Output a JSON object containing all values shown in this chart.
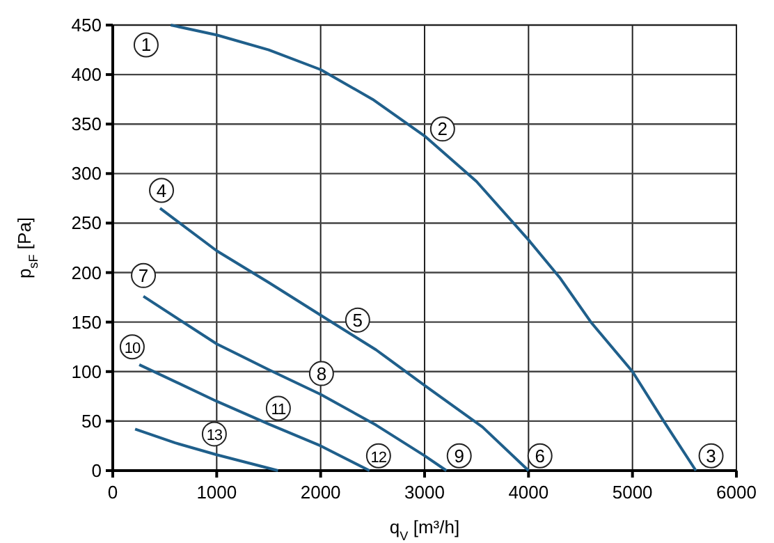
{
  "chart_data": {
    "type": "line",
    "xlabel": "q$_{V}$ [m³/h]",
    "ylabel": "p$_{sF}$ [Pa]",
    "xlim": [
      0,
      6000
    ],
    "xticks": [
      0,
      1000,
      2000,
      3000,
      4000,
      5000,
      6000
    ],
    "ylim": [
      0,
      450
    ],
    "yticks": [
      0,
      50,
      100,
      150,
      200,
      250,
      300,
      350,
      400,
      450
    ],
    "grid": true,
    "marker": "none",
    "line_style": "solid",
    "series": [
      {
        "color": "#1f5f8b",
        "x": [
          558,
          1000,
          1500,
          2000,
          2500,
          3000,
          3500,
          4000,
          4300,
          4600,
          5000,
          5300,
          5610
        ],
        "values": [
          450,
          440,
          425,
          405,
          375,
          338,
          292,
          233,
          195,
          150,
          100,
          50,
          0
        ]
      },
      {
        "color": "#1f5f8b",
        "x": [
          455,
          1000,
          1500,
          2000,
          2533,
          3000,
          3557,
          4000
        ],
        "values": [
          265,
          222,
          190,
          157,
          122,
          86,
          44,
          0
        ]
      },
      {
        "color": "#1f5f8b",
        "x": [
          295,
          1000,
          1500,
          2000,
          2533,
          3000,
          3210
        ],
        "values": [
          176,
          128,
          102,
          77,
          46,
          15,
          0
        ]
      },
      {
        "color": "#1f5f8b",
        "x": [
          255,
          1000,
          1500,
          2000,
          2470
        ],
        "values": [
          107,
          70,
          47,
          25,
          0
        ]
      },
      {
        "color": "#1f5f8b",
        "x": [
          215,
          600,
          1000,
          1590
        ],
        "values": [
          42,
          28,
          16,
          0
        ]
      }
    ],
    "annotations": [
      {
        "text": "1",
        "x": 321,
        "y": 430
      },
      {
        "text": "2",
        "x": 3173,
        "y": 345
      },
      {
        "text": "3",
        "x": 5756,
        "y": 15
      },
      {
        "text": "4",
        "x": 469,
        "y": 283
      },
      {
        "text": "5",
        "x": 2356,
        "y": 152
      },
      {
        "text": "6",
        "x": 4110,
        "y": 15
      },
      {
        "text": "7",
        "x": 295,
        "y": 197
      },
      {
        "text": "8",
        "x": 2008,
        "y": 98
      },
      {
        "text": "9",
        "x": 3333,
        "y": 15
      },
      {
        "text": "10",
        "x": 187,
        "y": 125
      },
      {
        "text": "11",
        "x": 1593,
        "y": 63
      },
      {
        "text": "12",
        "x": 2557,
        "y": 15
      },
      {
        "text": "13",
        "x": 977,
        "y": 37
      }
    ]
  }
}
